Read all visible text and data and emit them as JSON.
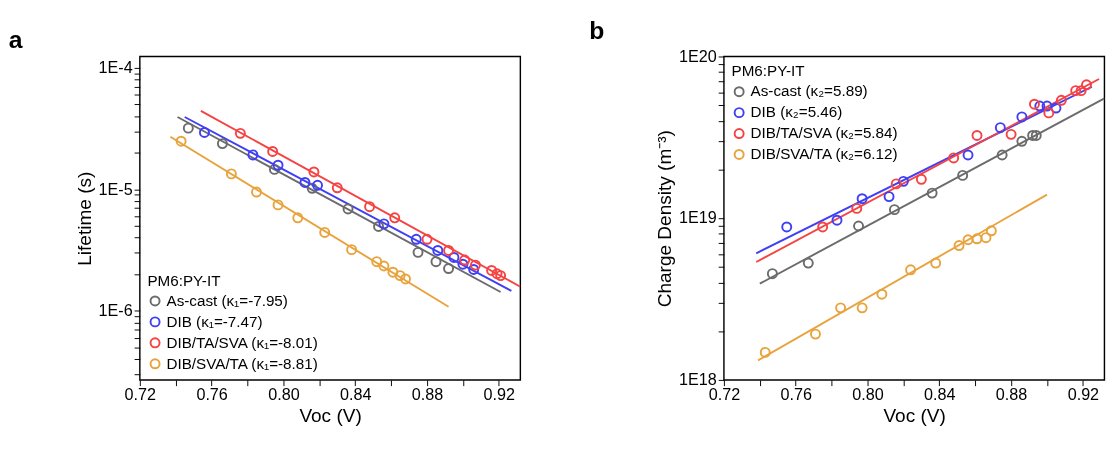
{
  "chart_data": [
    {
      "type": "scatter",
      "title": "a",
      "xlabel": "Voc (V)",
      "ylabel": "Lifetime (s)",
      "legend_title": "PM6:PY-IT",
      "legend": "bottom left",
      "log": true,
      "grid": false,
      "marker": "circle",
      "xlim": [
        0.72,
        0.932
      ],
      "ylim": [
        2.7e-07,
        0.000124
      ],
      "xticks": [
        0.72,
        {
          "value": 0.74,
          "label": null
        },
        0.76,
        {
          "value": 0.78,
          "label": null
        },
        {
          "value": 0.8,
          "label": "0.80"
        },
        {
          "value": 0.82,
          "label": null
        },
        0.84,
        {
          "value": 0.86,
          "label": null
        },
        0.88,
        {
          "value": 0.9,
          "label": null
        },
        0.92
      ],
      "yticks": [
        {
          "value": 3e-07,
          "label": null
        },
        {
          "value": 4e-07,
          "label": null
        },
        {
          "value": 5e-07,
          "label": null
        },
        {
          "value": 6e-07,
          "label": null
        },
        {
          "value": 7e-07,
          "label": null
        },
        {
          "value": 8e-07,
          "label": null
        },
        {
          "value": 9e-07,
          "label": null
        },
        {
          "value": 1e-06,
          "label": "1E-6"
        },
        {
          "value": 2e-06,
          "label": null
        },
        {
          "value": 3e-06,
          "label": null
        },
        {
          "value": 4e-06,
          "label": null
        },
        {
          "value": 5e-06,
          "label": null
        },
        {
          "value": 6e-06,
          "label": null
        },
        {
          "value": 7e-06,
          "label": null
        },
        {
          "value": 8e-06,
          "label": null
        },
        {
          "value": 9e-06,
          "label": null
        },
        {
          "value": 1e-05,
          "label": "1E-5"
        },
        {
          "value": 2e-05,
          "label": null
        },
        {
          "value": 3e-05,
          "label": null
        },
        {
          "value": 4e-05,
          "label": null
        },
        {
          "value": 5e-05,
          "label": null
        },
        {
          "value": 6e-05,
          "label": null
        },
        {
          "value": 7e-05,
          "label": null
        },
        {
          "value": 8e-05,
          "label": null
        },
        {
          "value": 9e-05,
          "label": null
        },
        {
          "value": 0.0001,
          "label": "1E-4"
        }
      ],
      "series": [
        {
          "name": "As-cast (κ₁=-7.95)",
          "color": "#6b6b6b",
          "x": [
            0.747,
            0.766,
            0.795,
            0.816,
            0.836,
            0.853,
            0.875,
            0.885,
            0.892
          ],
          "values": [
            3.19e-05,
            2.38e-05,
            1.46e-05,
            1.02e-05,
            6.9e-06,
            4.95e-06,
            3.03e-06,
            2.54e-06,
            2.23e-06
          ]
        },
        {
          "name": "DIB (κ₁=-7.47)",
          "color": "#3f3ff5",
          "x": [
            0.756,
            0.783,
            0.797,
            0.812,
            0.819,
            0.856,
            0.874,
            0.886,
            0.895,
            0.9,
            0.906
          ],
          "values": [
            2.94e-05,
            1.92e-05,
            1.58e-05,
            1.14e-05,
            1.08e-05,
            5.2e-06,
            3.88e-06,
            3.14e-06,
            2.75e-06,
            2.42e-06,
            2.19e-06
          ]
        },
        {
          "name": "DIB/TA/SVA (κ₁=-8.01)",
          "color": "#f54343",
          "x": [
            0.776,
            0.794,
            0.817,
            0.83,
            0.848,
            0.862,
            0.88,
            0.892,
            0.901,
            0.907,
            0.916,
            0.919,
            0.921
          ],
          "values": [
            2.89e-05,
            2.05e-05,
            1.39e-05,
            1.03e-05,
            7.2e-06,
            5.83e-06,
            3.88e-06,
            3.14e-06,
            2.62e-06,
            2.38e-06,
            2.15e-06,
            2.02e-06,
            1.95e-06
          ]
        },
        {
          "name": "DIB/SVA/TA (κ₁=-8.81)",
          "color": "#e8a33d",
          "x": [
            0.743,
            0.771,
            0.785,
            0.797,
            0.808,
            0.823,
            0.838,
            0.852,
            0.856,
            0.861,
            0.865,
            0.868
          ],
          "values": [
            2.49e-05,
            1.34e-05,
            9.5e-06,
            7.45e-06,
            5.83e-06,
            4.42e-06,
            3.19e-06,
            2.54e-06,
            2.34e-06,
            2.08e-06,
            1.95e-06,
            1.83e-06
          ]
        },
        {
          "type": "line",
          "marker": "none",
          "color": "#6b6b6b",
          "x": [
            0.741,
            0.921
          ],
          "values": [
            3.94e-05,
            1.43e-06
          ]
        },
        {
          "type": "line",
          "marker": "none",
          "color": "#3f3ff5",
          "x": [
            0.745,
            0.927
          ],
          "values": [
            3.94e-05,
            1.46e-06
          ]
        },
        {
          "type": "line",
          "marker": "none",
          "color": "#f54343",
          "x": [
            0.754,
            0.932
          ],
          "values": [
            4.42e-05,
            1.58e-06
          ]
        },
        {
          "type": "line",
          "marker": "none",
          "color": "#e8a33d",
          "x": [
            0.737,
            0.892
          ],
          "values": [
            2.71e-05,
            1.08e-06
          ]
        }
      ]
    },
    {
      "type": "scatter",
      "title": "b",
      "xlabel": "Voc (V)",
      "ylabel": "Charge Density (m⁻³)",
      "legend_title": "PM6:PY-IT",
      "legend": "top left",
      "log": true,
      "grid": false,
      "marker": "circle",
      "xlim": [
        0.72,
        0.932
      ],
      "ylim": [
        1e+18,
        1e+20
      ],
      "xticks": [
        0.72,
        {
          "value": 0.74,
          "label": null
        },
        0.76,
        {
          "value": 0.78,
          "label": null
        },
        {
          "value": 0.8,
          "label": "0.80"
        },
        {
          "value": 0.82,
          "label": null
        },
        0.84,
        {
          "value": 0.86,
          "label": null
        },
        0.88,
        {
          "value": 0.9,
          "label": null
        },
        0.92
      ],
      "yticks": [
        {
          "value": 1e+18,
          "label": "1E18"
        },
        {
          "value": 2e+18,
          "label": null
        },
        {
          "value": 3e+18,
          "label": null
        },
        {
          "value": 4e+18,
          "label": null
        },
        {
          "value": 5e+18,
          "label": null
        },
        {
          "value": 6e+18,
          "label": null
        },
        {
          "value": 7e+18,
          "label": null
        },
        {
          "value": 8e+18,
          "label": null
        },
        {
          "value": 9e+18,
          "label": null
        },
        {
          "value": 1e+19,
          "label": "1E19"
        },
        {
          "value": 2e+19,
          "label": null
        },
        {
          "value": 3e+19,
          "label": null
        },
        {
          "value": 4e+19,
          "label": null
        },
        {
          "value": 5e+19,
          "label": null
        },
        {
          "value": 6e+19,
          "label": null
        },
        {
          "value": 7e+19,
          "label": null
        },
        {
          "value": 8e+19,
          "label": null
        },
        {
          "value": 9e+19,
          "label": null
        },
        {
          "value": 1e+20,
          "label": "1E20"
        }
      ],
      "series": [
        {
          "name": "As-cast (κ₂=5.89)",
          "color": "#6b6b6b",
          "x": [
            0.747,
            0.767,
            0.795,
            0.815,
            0.836,
            0.853,
            0.875,
            0.886,
            0.892,
            0.894
          ],
          "values": [
            4.54e+18,
            5.28e+18,
            8.95e+18,
            1.13e+19,
            1.43e+19,
            1.84e+19,
            2.46e+19,
            2.99e+19,
            3.25e+19,
            3.25e+19
          ]
        },
        {
          "name": "DIB (κ₂=5.46)",
          "color": "#3f3ff5",
          "x": [
            0.755,
            0.783,
            0.797,
            0.812,
            0.82,
            0.856,
            0.874,
            0.886,
            0.896,
            0.9,
            0.905
          ],
          "values": [
            8.83e+18,
            9.72e+18,
            1.32e+19,
            1.36e+19,
            1.69e+19,
            2.46e+19,
            3.63e+19,
            4.23e+19,
            4.94e+19,
            4.94e+19,
            4.8e+19
          ]
        },
        {
          "name": "DIB/TA/SVA (κ₂=5.84)",
          "color": "#f54343",
          "x": [
            0.775,
            0.794,
            0.816,
            0.83,
            0.848,
            0.861,
            0.88,
            0.893,
            0.901,
            0.908,
            0.916,
            0.919,
            0.922
          ],
          "values": [
            8.83e+18,
            1.15e+19,
            1.63e+19,
            1.74e+19,
            2.36e+19,
            3.25e+19,
            3.3e+19,
            5.07e+19,
            4.48e+19,
            5.36e+19,
            6.15e+19,
            6.15e+19,
            6.68e+19
          ]
        },
        {
          "name": "DIB/SVA/TA (κ₂=6.12)",
          "color": "#e8a33d",
          "x": [
            0.743,
            0.771,
            0.785,
            0.797,
            0.808,
            0.824,
            0.838,
            0.851,
            0.856,
            0.861,
            0.866,
            0.869
          ],
          "values": [
            1.48e+18,
            1.92e+18,
            2.79e+18,
            2.79e+18,
            3.39e+18,
            4.8e+18,
            5.28e+18,
            6.78e+18,
            7.36e+18,
            7.46e+18,
            7.58e+18,
            8.36e+18
          ]
        },
        {
          "type": "line",
          "marker": "none",
          "color": "#6b6b6b",
          "x": [
            0.74,
            0.932
          ],
          "values": [
            3.94e+18,
            5.51e+19
          ]
        },
        {
          "type": "line",
          "marker": "none",
          "color": "#3f3ff5",
          "x": [
            0.738,
            0.925
          ],
          "values": [
            6.07e+18,
            6.5e+19
          ]
        },
        {
          "type": "line",
          "marker": "none",
          "color": "#f54343",
          "x": [
            0.738,
            0.929
          ],
          "values": [
            5.36e+18,
            7.26e+19
          ]
        },
        {
          "type": "line",
          "marker": "none",
          "color": "#e8a33d",
          "x": [
            0.739,
            0.9
          ],
          "values": [
            1.32e+18,
            1.4e+19
          ]
        }
      ]
    }
  ]
}
